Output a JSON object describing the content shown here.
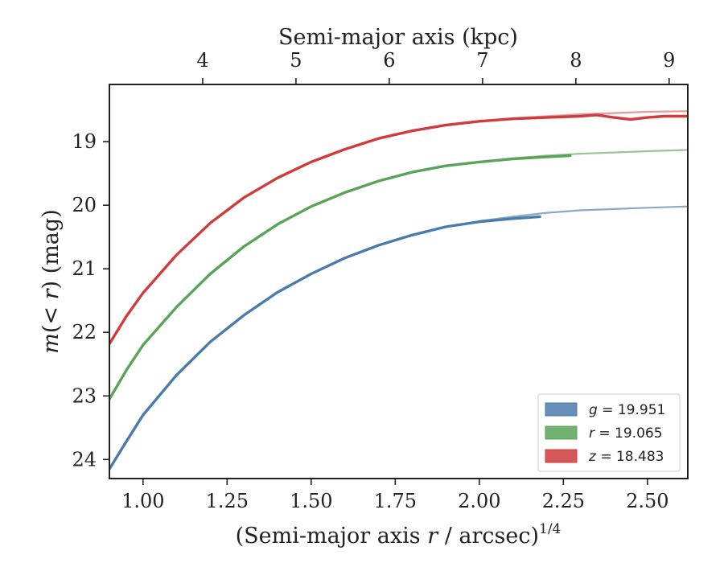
{
  "chart_data": {
    "type": "line",
    "xlabel": "(Semi-major axis r / arcsec)^1/4",
    "xlabel_parts": {
      "pre": "(Semi-major axis ",
      "var": "r",
      "mid": " / arcsec)",
      "sup": "1/4"
    },
    "ylabel": "m(< r) (mag)",
    "ylabel_parts": {
      "func": "m",
      "open": "(< ",
      "var": "r",
      "close": ")",
      "unit": " (mag)"
    },
    "top_xlabel": "Semi-major axis (kpc)",
    "xlim": [
      0.9,
      2.62
    ],
    "ylim": [
      24.3,
      18.1
    ],
    "y_inverted": true,
    "top_xlim": [
      3.0,
      9.2
    ],
    "xticks": [
      1.0,
      1.25,
      1.5,
      1.75,
      2.0,
      2.25,
      2.5
    ],
    "xtick_labels": [
      "1.00",
      "1.25",
      "1.50",
      "1.75",
      "2.00",
      "2.25",
      "2.50"
    ],
    "yticks": [
      19,
      20,
      21,
      22,
      23,
      24
    ],
    "ytick_labels": [
      "19",
      "20",
      "21",
      "22",
      "23",
      "24"
    ],
    "top_xticks": [
      4,
      5,
      6,
      7,
      8,
      9
    ],
    "top_xtick_labels": [
      "4",
      "5",
      "6",
      "7",
      "8",
      "9"
    ],
    "legend_position": "lower-right",
    "grid": false,
    "series": [
      {
        "name": "g = 19.951",
        "legend_var": "g",
        "legend_value": "19.951",
        "color": "#4a7bab",
        "model_color": "#8aa9c2",
        "x": [
          0.9,
          0.95,
          1.0,
          1.1,
          1.2,
          1.3,
          1.4,
          1.5,
          1.6,
          1.7,
          1.8,
          1.9,
          2.0,
          2.1,
          2.18
        ],
        "y": [
          24.15,
          23.72,
          23.3,
          22.67,
          22.15,
          21.73,
          21.37,
          21.08,
          20.83,
          20.63,
          20.47,
          20.34,
          20.26,
          20.21,
          20.18
        ],
        "model_x": [
          2.0,
          2.1,
          2.2,
          2.3,
          2.4,
          2.5,
          2.62
        ],
        "model_y": [
          20.25,
          20.18,
          20.12,
          20.08,
          20.06,
          20.04,
          20.02
        ]
      },
      {
        "name": "r = 19.065",
        "legend_var": "r",
        "legend_value": "19.065",
        "color": "#5aa35a",
        "model_color": "#9ac49a",
        "x": [
          0.9,
          0.95,
          1.0,
          1.1,
          1.2,
          1.3,
          1.4,
          1.5,
          1.6,
          1.7,
          1.8,
          1.9,
          2.0,
          2.1,
          2.2,
          2.27
        ],
        "y": [
          23.05,
          22.6,
          22.2,
          21.6,
          21.08,
          20.65,
          20.3,
          20.02,
          19.8,
          19.62,
          19.48,
          19.38,
          19.32,
          19.27,
          19.24,
          19.22
        ],
        "model_x": [
          2.0,
          2.1,
          2.2,
          2.3,
          2.4,
          2.5,
          2.62
        ],
        "model_y": [
          19.32,
          19.26,
          19.22,
          19.19,
          19.17,
          19.15,
          19.13
        ]
      },
      {
        "name": "z = 18.483",
        "legend_var": "z",
        "legend_value": "18.483",
        "color": "#d03b3b",
        "model_color": "#e59a9a",
        "x": [
          0.9,
          0.95,
          1.0,
          1.1,
          1.2,
          1.3,
          1.4,
          1.5,
          1.6,
          1.7,
          1.8,
          1.9,
          2.0,
          2.1,
          2.2,
          2.3,
          2.35,
          2.4,
          2.45,
          2.5,
          2.55,
          2.62
        ],
        "y": [
          22.18,
          21.75,
          21.38,
          20.78,
          20.28,
          19.88,
          19.57,
          19.32,
          19.12,
          18.95,
          18.83,
          18.74,
          18.68,
          18.64,
          18.62,
          18.6,
          18.58,
          18.62,
          18.65,
          18.62,
          18.6,
          18.6
        ],
        "model_x": [
          2.0,
          2.1,
          2.2,
          2.3,
          2.4,
          2.5,
          2.62
        ],
        "model_y": [
          18.68,
          18.63,
          18.6,
          18.57,
          18.55,
          18.53,
          18.52
        ]
      }
    ]
  }
}
